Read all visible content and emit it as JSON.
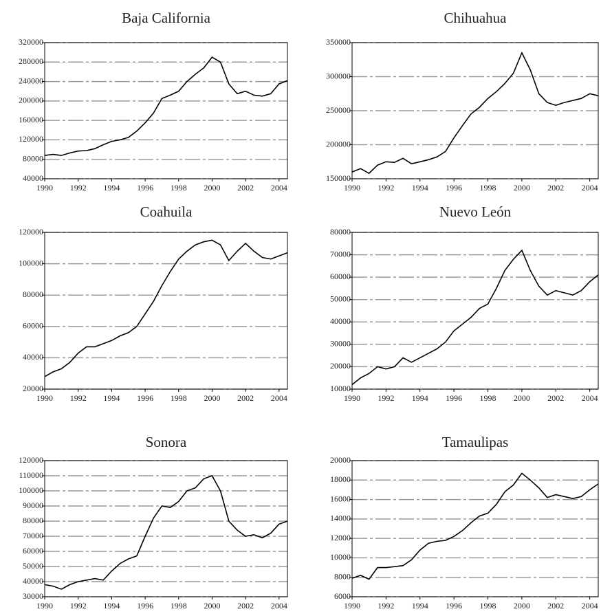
{
  "chart_data": [
    {
      "type": "line",
      "title": "Baja California",
      "color": "#000000",
      "grid": true,
      "x": [
        1990,
        1990.5,
        1991,
        1991.5,
        1992,
        1992.5,
        1993,
        1993.5,
        1994,
        1994.5,
        1995,
        1995.5,
        1996,
        1996.5,
        1997,
        1997.5,
        1998,
        1998.5,
        1999,
        1999.5,
        2000,
        2000.5,
        2001,
        2001.5,
        2002,
        2002.5,
        2003,
        2003.5,
        2004,
        2004.5
      ],
      "values": [
        88000,
        90000,
        88000,
        93000,
        97000,
        98000,
        102000,
        110000,
        117000,
        120000,
        125000,
        138000,
        155000,
        175000,
        205000,
        212000,
        220000,
        240000,
        255000,
        268000,
        290000,
        280000,
        235000,
        215000,
        220000,
        212000,
        210000,
        215000,
        235000,
        242000
      ],
      "xlim": [
        1990,
        2004.5
      ],
      "xticks": [
        1990,
        1992,
        1994,
        1996,
        1998,
        2000,
        2002,
        2004
      ],
      "ylim": [
        40000,
        320000
      ],
      "yticks": [
        40000,
        80000,
        120000,
        160000,
        200000,
        240000,
        280000,
        320000
      ]
    },
    {
      "type": "line",
      "title": "Chihuahua",
      "color": "#000000",
      "grid": true,
      "x": [
        1990,
        1990.5,
        1991,
        1991.5,
        1992,
        1992.5,
        1993,
        1993.5,
        1994,
        1994.5,
        1995,
        1995.5,
        1996,
        1996.5,
        1997,
        1997.5,
        1998,
        1998.5,
        1999,
        1999.5,
        2000,
        2000.5,
        2001,
        2001.5,
        2002,
        2002.5,
        2003,
        2003.5,
        2004,
        2004.5
      ],
      "values": [
        160000,
        165000,
        158000,
        170000,
        175000,
        174000,
        180000,
        172000,
        175000,
        178000,
        182000,
        190000,
        210000,
        228000,
        245000,
        255000,
        268000,
        278000,
        290000,
        305000,
        335000,
        310000,
        275000,
        262000,
        258000,
        262000,
        265000,
        268000,
        275000,
        272000
      ],
      "xlim": [
        1990,
        2004.5
      ],
      "xticks": [
        1990,
        1992,
        1994,
        1996,
        1998,
        2000,
        2002,
        2004
      ],
      "ylim": [
        150000,
        350000
      ],
      "yticks": [
        150000,
        200000,
        250000,
        300000,
        350000
      ]
    },
    {
      "type": "line",
      "title": "Coahuila",
      "color": "#000000",
      "grid": true,
      "x": [
        1990,
        1990.5,
        1991,
        1991.5,
        1992,
        1992.5,
        1993,
        1993.5,
        1994,
        1994.5,
        1995,
        1995.5,
        1996,
        1996.5,
        1997,
        1997.5,
        1998,
        1998.5,
        1999,
        1999.5,
        2000,
        2000.5,
        2001,
        2001.5,
        2002,
        2002.5,
        2003,
        2003.5,
        2004,
        2004.5
      ],
      "values": [
        28000,
        31000,
        33000,
        37000,
        43000,
        47000,
        47000,
        49000,
        51000,
        54000,
        56000,
        60000,
        68000,
        76000,
        86000,
        95000,
        103000,
        108000,
        112000,
        114000,
        115000,
        112000,
        102000,
        108000,
        113000,
        108000,
        104000,
        103000,
        105000,
        107000
      ],
      "xlim": [
        1990,
        2004.5
      ],
      "xticks": [
        1990,
        1992,
        1994,
        1996,
        1998,
        2000,
        2002,
        2004
      ],
      "ylim": [
        20000,
        120000
      ],
      "yticks": [
        20000,
        40000,
        60000,
        80000,
        100000,
        120000
      ]
    },
    {
      "type": "line",
      "title": "Nuevo León",
      "color": "#000000",
      "grid": true,
      "x": [
        1990,
        1990.5,
        1991,
        1991.5,
        1992,
        1992.5,
        1993,
        1993.5,
        1994,
        1994.5,
        1995,
        1995.5,
        1996,
        1996.5,
        1997,
        1997.5,
        1998,
        1998.5,
        1999,
        1999.5,
        2000,
        2000.5,
        2001,
        2001.5,
        2002,
        2002.5,
        2003,
        2003.5,
        2004,
        2004.5
      ],
      "values": [
        12000,
        15000,
        17000,
        20000,
        19000,
        20000,
        24000,
        22000,
        24000,
        26000,
        28000,
        31000,
        36000,
        39000,
        42000,
        46000,
        48000,
        55000,
        63000,
        68000,
        72000,
        63000,
        56000,
        52000,
        54000,
        53000,
        52000,
        54000,
        58000,
        61000
      ],
      "xlim": [
        1990,
        2004.5
      ],
      "xticks": [
        1990,
        1992,
        1994,
        1996,
        1998,
        2000,
        2002,
        2004
      ],
      "ylim": [
        10000,
        80000
      ],
      "yticks": [
        10000,
        20000,
        30000,
        40000,
        50000,
        60000,
        70000,
        80000
      ]
    },
    {
      "type": "line",
      "title": "Sonora",
      "color": "#000000",
      "grid": true,
      "x": [
        1990,
        1990.5,
        1991,
        1991.5,
        1992,
        1992.5,
        1993,
        1993.5,
        1994,
        1994.5,
        1995,
        1995.5,
        1996,
        1996.5,
        1997,
        1997.5,
        1998,
        1998.5,
        1999,
        1999.5,
        2000,
        2000.5,
        2001,
        2001.5,
        2002,
        2002.5,
        2003,
        2003.5,
        2004,
        2004.5
      ],
      "values": [
        38000,
        37000,
        35000,
        38000,
        40000,
        41000,
        42000,
        41000,
        47000,
        52000,
        55000,
        57000,
        70000,
        82000,
        90000,
        89000,
        93000,
        100000,
        102000,
        108000,
        110000,
        100000,
        80000,
        74000,
        70000,
        71000,
        69000,
        72000,
        78000,
        80000
      ],
      "xlim": [
        1990,
        2004.5
      ],
      "xticks": [
        1990,
        1992,
        1994,
        1996,
        1998,
        2000,
        2002,
        2004
      ],
      "ylim": [
        30000,
        120000
      ],
      "yticks": [
        30000,
        40000,
        50000,
        60000,
        70000,
        80000,
        90000,
        100000,
        110000,
        120000
      ]
    },
    {
      "type": "line",
      "title": "Tamaulipas",
      "color": "#000000",
      "grid": true,
      "x": [
        1990,
        1990.5,
        1991,
        1991.5,
        1992,
        1992.5,
        1993,
        1993.5,
        1994,
        1994.5,
        1995,
        1995.5,
        1996,
        1996.5,
        1997,
        1997.5,
        1998,
        1998.5,
        1999,
        1999.5,
        2000,
        2000.5,
        2001,
        2001.5,
        2002,
        2002.5,
        2003,
        2003.5,
        2004,
        2004.5
      ],
      "values": [
        7900,
        8200,
        7800,
        9000,
        9000,
        9100,
        9200,
        9800,
        10800,
        11500,
        11700,
        11800,
        12200,
        12800,
        13600,
        14300,
        14600,
        15500,
        16800,
        17500,
        18700,
        18000,
        17200,
        16200,
        16500,
        16300,
        16100,
        16300,
        17000,
        17600
      ],
      "xlim": [
        1990,
        2004.5
      ],
      "xticks": [
        1990,
        1992,
        1994,
        1996,
        1998,
        2000,
        2002,
        2004
      ],
      "ylim": [
        6000,
        20000
      ],
      "yticks": [
        6000,
        8000,
        10000,
        12000,
        14000,
        16000,
        18000,
        20000
      ]
    }
  ]
}
